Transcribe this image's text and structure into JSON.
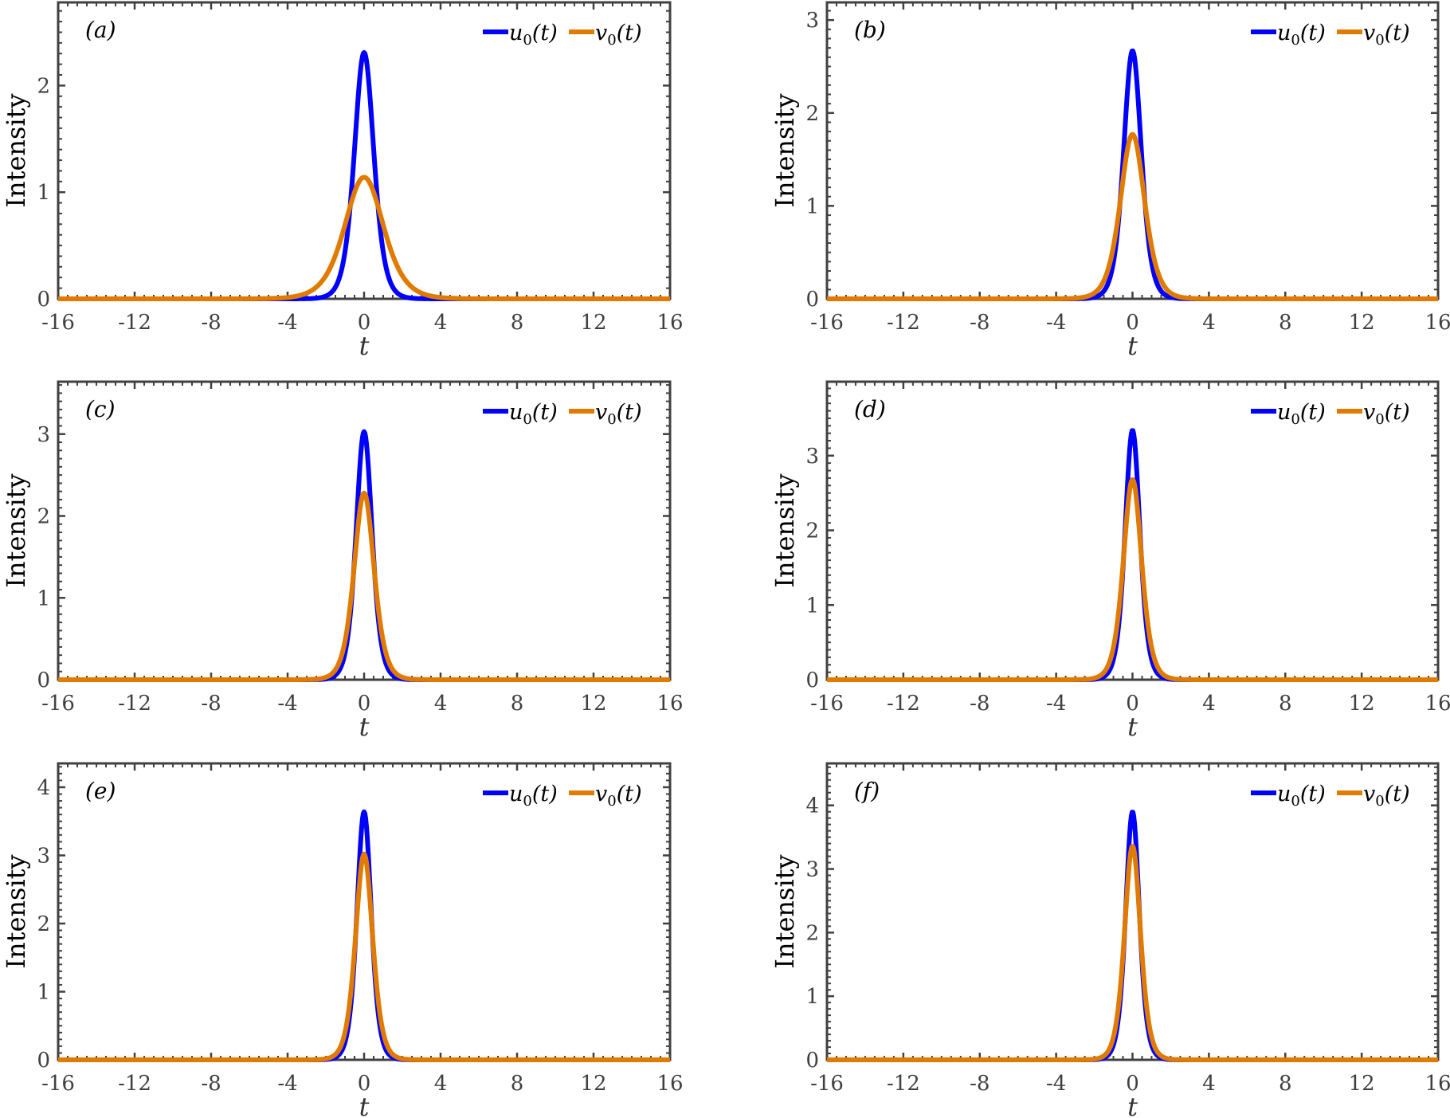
{
  "figure": {
    "legend": {
      "series": [
        {
          "name": "u",
          "label_main": "u",
          "label_sub": "0",
          "label_tail": "(t)",
          "color": "#0000FF"
        },
        {
          "name": "v",
          "label_main": "v",
          "label_sub": "0",
          "label_tail": "(t)",
          "color": "#E07B00"
        }
      ]
    },
    "axis_color": "#404040"
  },
  "chart_data": [
    {
      "type": "line",
      "panel": "(a)",
      "xlabel": "t",
      "ylabel": "Intensity",
      "xlim": [
        -16,
        16
      ],
      "ylim": [
        0,
        2.78
      ],
      "xticks": [
        -16,
        -12,
        -8,
        -4,
        0,
        4,
        8,
        12,
        16
      ],
      "yticks": [
        0,
        1,
        2
      ],
      "legend_position": "top-right",
      "grid": false,
      "series": [
        {
          "name": "u0(t)",
          "shape": "sech^2",
          "peak": 2.31,
          "center": 0,
          "width": 0.68
        },
        {
          "name": "v0(t)",
          "shape": "sech^2",
          "peak": 1.14,
          "center": 0,
          "width": 1.36
        }
      ]
    },
    {
      "type": "line",
      "panel": "(b)",
      "xlabel": "t",
      "ylabel": "Intensity",
      "xlim": [
        -16,
        16
      ],
      "ylim": [
        0,
        3.19
      ],
      "xticks": [
        -16,
        -12,
        -8,
        -4,
        0,
        4,
        8,
        12,
        16
      ],
      "yticks": [
        0,
        1,
        2,
        3
      ],
      "legend_position": "top-right",
      "grid": false,
      "series": [
        {
          "name": "u0(t)",
          "shape": "sech^2",
          "peak": 2.67,
          "center": 0,
          "width": 0.62
        },
        {
          "name": "v0(t)",
          "shape": "sech^2",
          "peak": 1.77,
          "center": 0,
          "width": 0.85
        }
      ]
    },
    {
      "type": "line",
      "panel": "(c)",
      "xlabel": "t",
      "ylabel": "Intensity",
      "xlim": [
        -16,
        16
      ],
      "ylim": [
        0,
        3.64
      ],
      "xticks": [
        -16,
        -12,
        -8,
        -4,
        0,
        4,
        8,
        12,
        16
      ],
      "yticks": [
        0,
        1,
        2,
        3
      ],
      "legend_position": "top-right",
      "grid": false,
      "series": [
        {
          "name": "u0(t)",
          "shape": "sech^2",
          "peak": 3.03,
          "center": 0,
          "width": 0.56
        },
        {
          "name": "v0(t)",
          "shape": "sech^2",
          "peak": 2.28,
          "center": 0,
          "width": 0.7
        }
      ]
    },
    {
      "type": "line",
      "panel": "(d)",
      "xlabel": "t",
      "ylabel": "Intensity",
      "xlim": [
        -16,
        16
      ],
      "ylim": [
        0,
        3.99
      ],
      "xticks": [
        -16,
        -12,
        -8,
        -4,
        0,
        4,
        8,
        12,
        16
      ],
      "yticks": [
        0,
        1,
        2,
        3
      ],
      "legend_position": "top-right",
      "grid": false,
      "series": [
        {
          "name": "u0(t)",
          "shape": "sech^2",
          "peak": 3.34,
          "center": 0,
          "width": 0.52
        },
        {
          "name": "v0(t)",
          "shape": "sech^2",
          "peak": 2.68,
          "center": 0,
          "width": 0.64
        }
      ]
    },
    {
      "type": "line",
      "panel": "(e)",
      "xlabel": "t",
      "ylabel": "Intensity",
      "xlim": [
        -16,
        16
      ],
      "ylim": [
        0,
        4.35
      ],
      "xticks": [
        -16,
        -12,
        -8,
        -4,
        0,
        4,
        8,
        12,
        16
      ],
      "yticks": [
        0,
        1,
        2,
        3,
        4
      ],
      "legend_position": "top-right",
      "grid": false,
      "series": [
        {
          "name": "u0(t)",
          "shape": "sech^2",
          "peak": 3.64,
          "center": 0,
          "width": 0.5
        },
        {
          "name": "v0(t)",
          "shape": "sech^2",
          "peak": 3.02,
          "center": 0,
          "width": 0.6
        }
      ]
    },
    {
      "type": "line",
      "panel": "(f)",
      "xlabel": "t",
      "ylabel": "Intensity",
      "xlim": [
        -16,
        16
      ],
      "ylim": [
        0,
        4.66
      ],
      "xticks": [
        -16,
        -12,
        -8,
        -4,
        0,
        4,
        8,
        12,
        16
      ],
      "yticks": [
        0,
        1,
        2,
        3,
        4
      ],
      "legend_position": "top-right",
      "grid": false,
      "series": [
        {
          "name": "u0(t)",
          "shape": "sech^2",
          "peak": 3.9,
          "center": 0,
          "width": 0.48
        },
        {
          "name": "v0(t)",
          "shape": "sech^2",
          "peak": 3.36,
          "center": 0,
          "width": 0.56
        }
      ]
    }
  ]
}
